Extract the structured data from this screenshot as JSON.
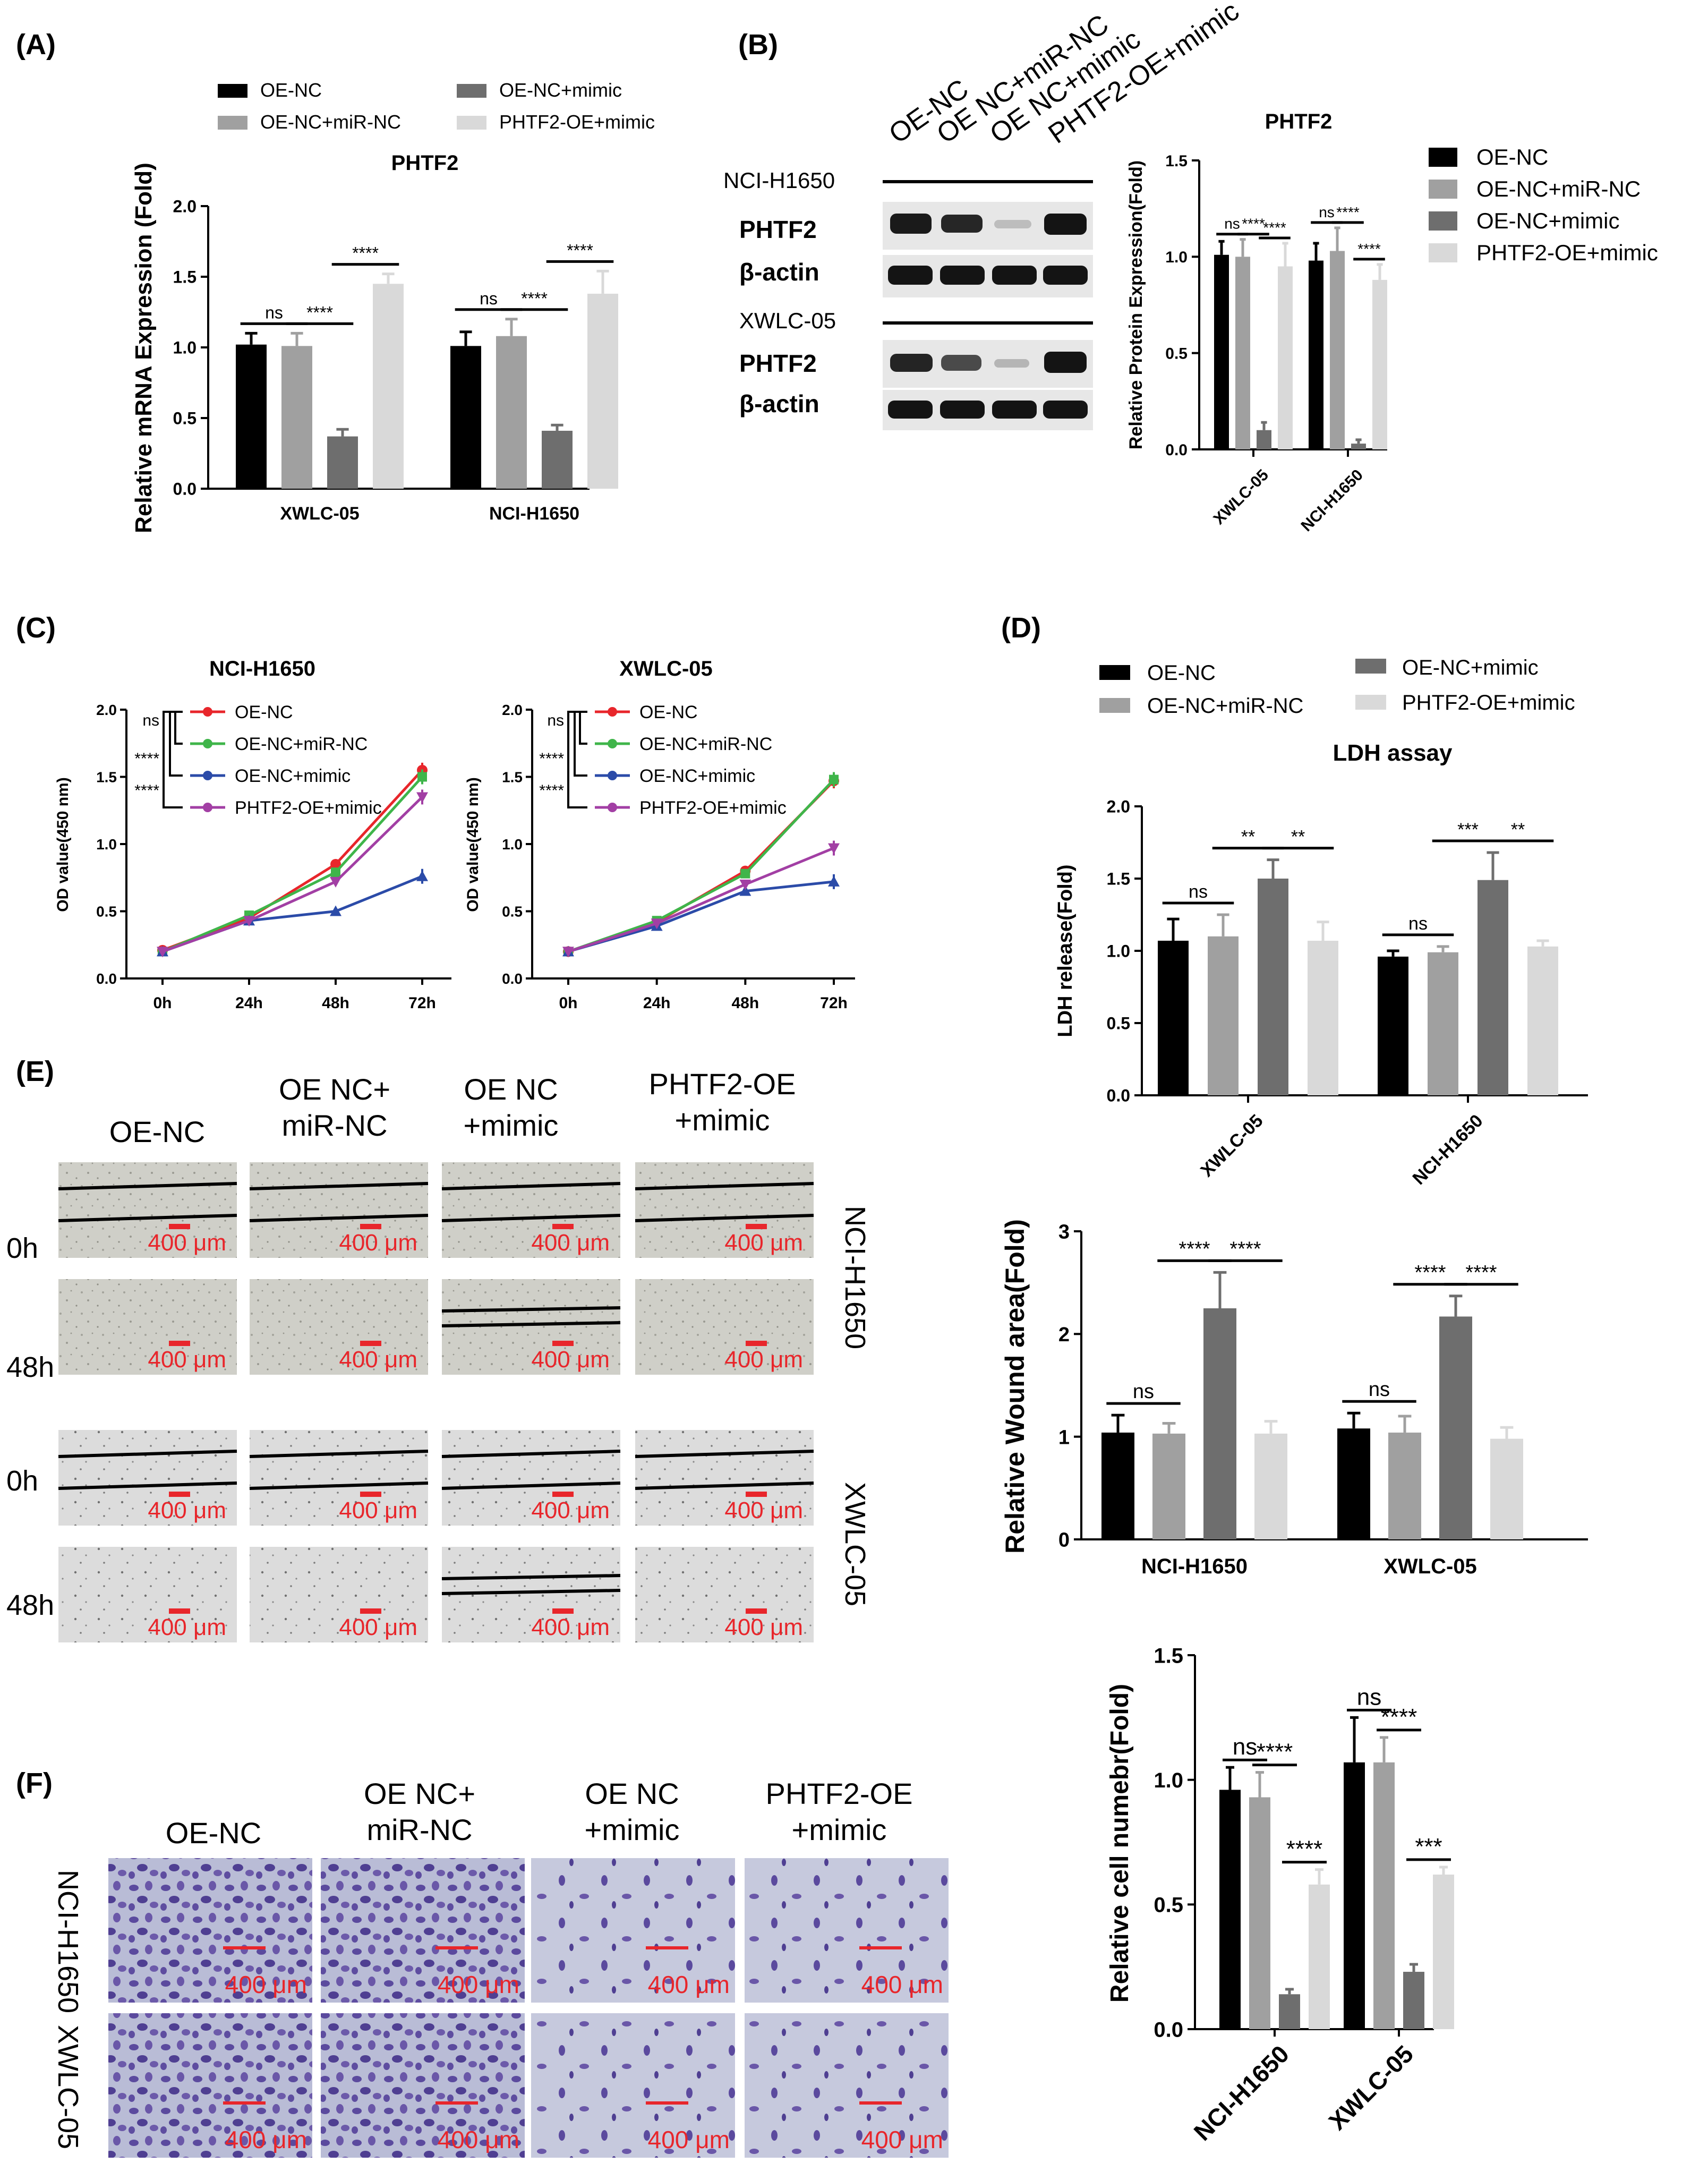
{
  "figure": {
    "panels": {
      "A": "(A)",
      "B": "(B)",
      "C": "(C)",
      "D": "(D)",
      "E": "(E)",
      "F": "(F)"
    },
    "groups": [
      "OE-NC",
      "OE-NC+miR-NC",
      "OE-NC+mimic",
      "PHTF2-OE+mimic"
    ],
    "group_colors": [
      "#000000",
      "#a0a0a0",
      "#6e6e6e",
      "#d9d9d9"
    ],
    "line_colors": [
      "#e8262b",
      "#3fb54a",
      "#2b4ba8",
      "#a23fa4"
    ],
    "western": {
      "lane_labels": [
        "OE-NC",
        "OE NC+miR-NC",
        "OE NC+mimic",
        "PHTF2-OE+mimic"
      ],
      "cell1": "NCI-H1650",
      "cell2": "XWLC-05",
      "row1": "PHTF2",
      "row2": "β-actin"
    },
    "image_headers": {
      "col1": "OE-NC",
      "col2_line1": "OE NC+",
      "col2_line2": "miR-NC",
      "col3_line1": "OE NC",
      "col3_line2": "+mimic",
      "col4_line1": "PHTF2-OE",
      "col4_line2": "+mimic"
    },
    "time_0h": "0h",
    "time_48h": "48h",
    "scale_bar": "400 μm",
    "cell_nci": "NCI-H1650",
    "cell_xwlc": "XWLC-05"
  },
  "chart_data": [
    {
      "panel": "A",
      "type": "bar",
      "title": "PHTF2",
      "ylabel": "Relative mRNA Expression (Fold)",
      "categories": [
        "XWLC-05",
        "NCI-H1650"
      ],
      "ylim": [
        0,
        2.0
      ],
      "yticks": [
        "0.0",
        "0.5",
        "1.0",
        "1.5",
        "2.0"
      ],
      "series": [
        {
          "name": "OE-NC",
          "values": [
            1.02,
            1.01
          ],
          "errors": [
            0.08,
            0.1
          ]
        },
        {
          "name": "OE-NC+miR-NC",
          "values": [
            1.01,
            1.08
          ],
          "errors": [
            0.09,
            0.12
          ]
        },
        {
          "name": "OE-NC+mimic",
          "values": [
            0.37,
            0.41
          ],
          "errors": [
            0.05,
            0.04
          ]
        },
        {
          "name": "PHTF2-OE+mimic",
          "values": [
            1.45,
            1.38
          ],
          "errors": [
            0.07,
            0.16
          ]
        }
      ],
      "significance": [
        {
          "cat": 0,
          "a": 0,
          "b": 1,
          "label": "ns"
        },
        {
          "cat": 0,
          "a": 1,
          "b": 2,
          "label": "****"
        },
        {
          "cat": 0,
          "a": 2,
          "b": 3,
          "label": "****"
        },
        {
          "cat": 1,
          "a": 0,
          "b": 1,
          "label": "ns"
        },
        {
          "cat": 1,
          "a": 1,
          "b": 2,
          "label": "****"
        },
        {
          "cat": 1,
          "a": 2,
          "b": 3,
          "label": "****"
        }
      ]
    },
    {
      "panel": "B",
      "type": "bar",
      "title": "PHTF2",
      "ylabel": "Relative Protein Expression(Fold)",
      "categories": [
        "XWLC-05",
        "NCI-H1650"
      ],
      "ylim": [
        0,
        1.5
      ],
      "yticks": [
        "0.0",
        "0.5",
        "1.0",
        "1.5"
      ],
      "series": [
        {
          "name": "OE-NC",
          "values": [
            1.01,
            0.98
          ],
          "errors": [
            0.07,
            0.09
          ]
        },
        {
          "name": "OE-NC+miR-NC",
          "values": [
            1.0,
            1.03
          ],
          "errors": [
            0.09,
            0.12
          ]
        },
        {
          "name": "OE-NC+mimic",
          "values": [
            0.1,
            0.03
          ],
          "errors": [
            0.04,
            0.02
          ]
        },
        {
          "name": "PHTF2-OE+mimic",
          "values": [
            0.95,
            0.88
          ],
          "errors": [
            0.12,
            0.08
          ]
        }
      ],
      "significance": [
        {
          "cat": 0,
          "a": 0,
          "b": 1,
          "label": "ns"
        },
        {
          "cat": 0,
          "a": 1,
          "b": 2,
          "label": "****"
        },
        {
          "cat": 0,
          "a": 2,
          "b": 3,
          "label": "****"
        },
        {
          "cat": 1,
          "a": 0,
          "b": 1,
          "label": "ns"
        },
        {
          "cat": 1,
          "a": 1,
          "b": 2,
          "label": "****"
        },
        {
          "cat": 1,
          "a": 2,
          "b": 3,
          "label": "****"
        }
      ]
    },
    {
      "panel": "C1",
      "type": "line",
      "title": "NCI-H1650",
      "ylabel": "OD value(450 nm)",
      "x": [
        "0h",
        "24h",
        "48h",
        "72h"
      ],
      "ylim": [
        0,
        2.0
      ],
      "yticks": [
        "0.0",
        "0.5",
        "1.0",
        "1.5",
        "2.0"
      ],
      "series": [
        {
          "name": "OE-NC",
          "values": [
            0.21,
            0.45,
            0.85,
            1.55
          ]
        },
        {
          "name": "OE-NC+miR-NC",
          "values": [
            0.2,
            0.47,
            0.79,
            1.5
          ]
        },
        {
          "name": "OE-NC+mimic",
          "values": [
            0.2,
            0.43,
            0.5,
            0.76
          ]
        },
        {
          "name": "PHTF2-OE+mimic",
          "values": [
            0.2,
            0.43,
            0.72,
            1.35
          ]
        }
      ],
      "significance": [
        "ns",
        "****",
        "****"
      ]
    },
    {
      "panel": "C2",
      "type": "line",
      "title": "XWLC-05",
      "ylabel": "OD value(450 nm)",
      "x": [
        "0h",
        "24h",
        "48h",
        "72h"
      ],
      "ylim": [
        0,
        2.0
      ],
      "yticks": [
        "0.0",
        "0.5",
        "1.0",
        "1.5",
        "2.0"
      ],
      "series": [
        {
          "name": "OE-NC",
          "values": [
            0.2,
            0.42,
            0.8,
            1.47
          ]
        },
        {
          "name": "OE-NC+miR-NC",
          "values": [
            0.2,
            0.43,
            0.78,
            1.48
          ]
        },
        {
          "name": "OE-NC+mimic",
          "values": [
            0.2,
            0.39,
            0.65,
            0.72
          ]
        },
        {
          "name": "PHTF2-OE+mimic",
          "values": [
            0.2,
            0.41,
            0.7,
            0.97
          ]
        }
      ],
      "significance": [
        "ns",
        "****",
        "****"
      ]
    },
    {
      "panel": "D",
      "type": "bar",
      "title": "LDH assay",
      "ylabel": "LDH release(Fold)",
      "categories": [
        "XWLC-05",
        "NCI-H1650"
      ],
      "ylim": [
        0,
        2.0
      ],
      "yticks": [
        "0.0",
        "0.5",
        "1.0",
        "1.5",
        "2.0"
      ],
      "series": [
        {
          "name": "OE-NC",
          "values": [
            1.07,
            0.96
          ],
          "errors": [
            0.15,
            0.04
          ]
        },
        {
          "name": "OE-NC+miR-NC",
          "values": [
            1.1,
            0.99
          ],
          "errors": [
            0.15,
            0.04
          ]
        },
        {
          "name": "OE-NC+mimic",
          "values": [
            1.5,
            1.49
          ],
          "errors": [
            0.13,
            0.19
          ]
        },
        {
          "name": "PHTF2-OE+mimic",
          "values": [
            1.07,
            1.03
          ],
          "errors": [
            0.13,
            0.04
          ]
        }
      ],
      "significance": [
        {
          "cat": 0,
          "a": 0,
          "b": 1,
          "label": "ns"
        },
        {
          "cat": 0,
          "a": 1,
          "b": 2,
          "label": "**"
        },
        {
          "cat": 0,
          "a": 2,
          "b": 3,
          "label": "**"
        },
        {
          "cat": 1,
          "a": 0,
          "b": 1,
          "label": "ns"
        },
        {
          "cat": 1,
          "a": 1,
          "b": 2,
          "label": "***"
        },
        {
          "cat": 1,
          "a": 2,
          "b": 3,
          "label": "**"
        }
      ]
    },
    {
      "panel": "E",
      "type": "bar",
      "title": "",
      "ylabel": "Relative Wound area(Fold)",
      "categories": [
        "NCI-H1650",
        "XWLC-05"
      ],
      "ylim": [
        0,
        3
      ],
      "yticks": [
        "0",
        "1",
        "2",
        "3"
      ],
      "series": [
        {
          "name": "OE-NC",
          "values": [
            1.04,
            1.08
          ],
          "errors": [
            0.17,
            0.15
          ]
        },
        {
          "name": "OE-NC+miR-NC",
          "values": [
            1.03,
            1.04
          ],
          "errors": [
            0.1,
            0.16
          ]
        },
        {
          "name": "OE-NC+mimic",
          "values": [
            2.25,
            2.17
          ],
          "errors": [
            0.35,
            0.2
          ]
        },
        {
          "name": "PHTF2-OE+mimic",
          "values": [
            1.03,
            0.98
          ],
          "errors": [
            0.12,
            0.11
          ]
        }
      ],
      "significance": [
        {
          "cat": 0,
          "a": 0,
          "b": 1,
          "label": "ns"
        },
        {
          "cat": 0,
          "a": 1,
          "b": 2,
          "label": "****"
        },
        {
          "cat": 0,
          "a": 2,
          "b": 3,
          "label": "****"
        },
        {
          "cat": 1,
          "a": 0,
          "b": 1,
          "label": "ns"
        },
        {
          "cat": 1,
          "a": 1,
          "b": 2,
          "label": "****"
        },
        {
          "cat": 1,
          "a": 2,
          "b": 3,
          "label": "****"
        }
      ]
    },
    {
      "panel": "F",
      "type": "bar",
      "title": "",
      "ylabel": "Relative cell numebr(Fold)",
      "categories": [
        "NCI-H1650",
        "XWLC-05"
      ],
      "ylim": [
        0,
        1.5
      ],
      "yticks": [
        "0.0",
        "0.5",
        "1.0",
        "1.5"
      ],
      "series": [
        {
          "name": "OE-NC",
          "values": [
            0.96,
            1.07
          ],
          "errors": [
            0.09,
            0.18
          ]
        },
        {
          "name": "OE-NC+miR-NC",
          "values": [
            0.93,
            1.07
          ],
          "errors": [
            0.1,
            0.1
          ]
        },
        {
          "name": "OE-NC+mimic",
          "values": [
            0.14,
            0.23
          ],
          "errors": [
            0.02,
            0.03
          ]
        },
        {
          "name": "PHTF2-OE+mimic",
          "values": [
            0.58,
            0.62
          ],
          "errors": [
            0.06,
            0.03
          ]
        }
      ],
      "significance": [
        {
          "cat": 0,
          "a": 0,
          "b": 1,
          "label": "ns"
        },
        {
          "cat": 0,
          "a": 1,
          "b": 2,
          "label": "****"
        },
        {
          "cat": 0,
          "a": 2,
          "b": 3,
          "label": "****"
        },
        {
          "cat": 1,
          "a": 0,
          "b": 1,
          "label": "ns"
        },
        {
          "cat": 1,
          "a": 1,
          "b": 2,
          "label": "****"
        },
        {
          "cat": 1,
          "a": 2,
          "b": 3,
          "label": "***"
        }
      ]
    }
  ]
}
